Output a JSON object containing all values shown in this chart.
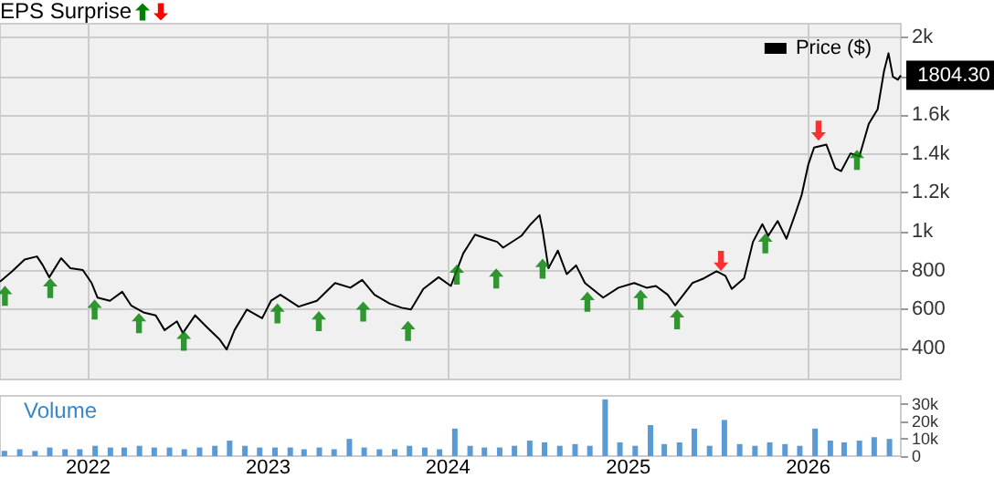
{
  "chart_data": [
    {
      "type": "line",
      "title": "EPS Surprise",
      "legend": "top right",
      "grid": true,
      "marker": "none",
      "tick_labels": "y",
      "xlim": [
        "2021-07-06",
        "2026-07-08"
      ],
      "xticks": [
        "2022",
        "2023",
        "2024",
        "2025",
        "2026"
      ],
      "ylim": [
        240,
        2070
      ],
      "yticks": [
        400,
        600,
        800,
        {
          "value": 1000,
          "label": "1k"
        },
        {
          "value": 1200,
          "label": "1.2k"
        },
        {
          "value": 1400,
          "label": "1.4k"
        },
        {
          "value": 1600,
          "label": "1.6k"
        },
        {
          "value": 1800,
          "label": null
        },
        {
          "value": 2000,
          "label": "2k"
        }
      ],
      "annotations": [
        {
          "text": "1804.30",
          "x": "2026-07-08",
          "y": 1804.3
        }
      ],
      "series": [
        {
          "name": "Price ($)",
          "type": "line",
          "color": "#000000",
          "x": [
            "2021-07-06",
            "2021-07-31",
            "2021-08-25",
            "2021-09-19",
            "2021-10-01",
            "2021-10-14",
            "2021-11-07",
            "2021-11-26",
            "2021-12-21",
            "2022-01-08",
            "2022-01-20",
            "2022-02-14",
            "2022-03-11",
            "2022-03-29",
            "2022-04-23",
            "2022-05-18",
            "2022-06-05",
            "2022-06-30",
            "2022-07-12",
            "2022-08-06",
            "2022-08-30",
            "2022-09-24",
            "2022-10-09",
            "2022-10-25",
            "2022-11-19",
            "2022-12-20",
            "2023-01-07",
            "2023-01-26",
            "2023-03-04",
            "2023-04-10",
            "2023-05-17",
            "2023-06-17",
            "2023-07-11",
            "2023-08-05",
            "2023-09-05",
            "2023-09-29",
            "2023-10-18",
            "2023-11-12",
            "2023-12-13",
            "2024-01-07",
            "2024-02-01",
            "2024-02-25",
            "2024-03-21",
            "2024-04-10",
            "2024-04-22",
            "2024-05-29",
            "2024-06-17",
            "2024-07-05",
            "2024-07-11",
            "2024-07-23",
            "2024-08-11",
            "2024-08-29",
            "2024-09-17",
            "2024-10-05",
            "2024-11-11",
            "2024-12-12",
            "2025-01-13",
            "2025-02-07",
            "2025-02-26",
            "2025-03-22",
            "2025-04-06",
            "2025-05-11",
            "2025-06-04",
            "2025-06-29",
            "2025-07-17",
            "2025-07-30",
            "2025-08-24",
            "2025-09-11",
            "2025-09-30",
            "2025-10-12",
            "2025-10-31",
            "2025-11-18",
            "2025-12-07",
            "2025-12-19",
            "2026-01-01",
            "2026-01-13",
            "2026-02-07",
            "2026-02-25",
            "2026-03-09",
            "2026-03-28",
            "2026-04-15",
            "2026-05-04",
            "2026-05-22",
            "2026-06-04",
            "2026-06-13",
            "2026-06-22",
            "2026-07-02",
            "2026-07-08"
          ],
          "values": [
            743,
            797,
            857,
            873,
            827,
            766,
            864,
            812,
            803,
            736,
            661,
            645,
            691,
            621,
            585,
            570,
            494,
            539,
            479,
            570,
            509,
            448,
            394,
            494,
            600,
            555,
            645,
            676,
            615,
            645,
            736,
            712,
            752,
            676,
            630,
            609,
            600,
            706,
            766,
            721,
            888,
            985,
            964,
            948,
            918,
            979,
            1039,
            1085,
            1009,
            812,
            903,
            782,
            827,
            736,
            661,
            712,
            736,
            712,
            721,
            676,
            621,
            736,
            761,
            797,
            773,
            706,
            761,
            948,
            1039,
            979,
            1055,
            964,
            1100,
            1191,
            1343,
            1433,
            1448,
            1327,
            1312,
            1403,
            1388,
            1555,
            1630,
            1827,
            1918,
            1797,
            1782,
            1804.3
          ]
        },
        {
          "type": "scatter",
          "color": "#008000",
          "x": [
            "2021-07-16",
            "2021-10-16",
            "2022-01-14",
            "2022-04-14",
            "2022-07-14",
            "2023-01-20",
            "2023-04-14",
            "2023-07-13",
            "2023-10-12",
            "2024-01-19",
            "2024-04-08",
            "2024-07-11",
            "2024-10-10",
            "2025-01-26",
            "2025-04-10",
            "2025-10-06",
            "2026-04-10"
          ],
          "values": [
            670,
            710,
            600,
            530,
            440,
            580,
            540,
            590,
            490,
            780,
            760,
            810,
            640,
            650,
            550,
            940,
            1370
          ]
        },
        {
          "type": "scatter",
          "color": "#ff0000",
          "x": [
            "2025-07-08",
            "2026-01-22"
          ],
          "values": [
            850,
            1520
          ]
        }
      ]
    },
    {
      "type": "bar",
      "title": "Volume",
      "grid": true,
      "color": "#5b9bd5",
      "xlim": [
        "2021-07-06",
        "2026-07-08"
      ],
      "xticks": [
        "2022",
        "2023",
        "2024",
        "2025",
        "2026"
      ],
      "ylim": [
        0,
        35000
      ],
      "yticks": [
        0,
        {
          "value": 10000,
          "label": "10k"
        },
        {
          "value": 20000,
          "label": "20k"
        },
        {
          "value": 30000,
          "label": "30k"
        }
      ],
      "x": [
        "2021-07-15",
        "2021-08-15",
        "2021-09-15",
        "2021-10-15",
        "2021-11-15",
        "2021-12-15",
        "2022-01-15",
        "2022-02-15",
        "2022-03-15",
        "2022-04-15",
        "2022-05-15",
        "2022-06-15",
        "2022-07-15",
        "2022-08-15",
        "2022-09-15",
        "2022-10-15",
        "2022-11-15",
        "2022-12-15",
        "2023-01-15",
        "2023-02-15",
        "2023-03-15",
        "2023-04-15",
        "2023-05-15",
        "2023-06-15",
        "2023-07-15",
        "2023-08-15",
        "2023-09-15",
        "2023-10-15",
        "2023-11-15",
        "2023-12-15",
        "2024-01-15",
        "2024-02-15",
        "2024-03-15",
        "2024-04-15",
        "2024-05-15",
        "2024-06-15",
        "2024-07-15",
        "2024-08-15",
        "2024-09-15",
        "2024-10-15",
        "2024-11-15",
        "2024-12-15",
        "2025-01-15",
        "2025-02-15",
        "2025-03-15",
        "2025-04-15",
        "2025-05-15",
        "2025-06-15",
        "2025-07-15",
        "2025-08-15",
        "2025-09-15",
        "2025-10-15",
        "2025-11-15",
        "2025-12-15",
        "2026-01-15",
        "2026-02-15",
        "2026-03-15",
        "2026-04-15",
        "2026-05-15",
        "2026-06-15"
      ],
      "values": [
        3000,
        4000,
        3000,
        5000,
        4000,
        4000,
        6000,
        5000,
        5000,
        6000,
        5000,
        5000,
        4000,
        5000,
        6000,
        9000,
        6000,
        5000,
        5000,
        5000,
        4000,
        5000,
        4000,
        10000,
        5000,
        4000,
        4000,
        6000,
        5000,
        4000,
        16000,
        6000,
        5000,
        5000,
        6000,
        9000,
        8000,
        6000,
        7000,
        6000,
        33000,
        8000,
        6000,
        18000,
        7000,
        8000,
        16000,
        6000,
        21000,
        7000,
        6000,
        8000,
        7000,
        6000,
        16000,
        9000,
        8000,
        9000,
        11000,
        10000
      ]
    }
  ]
}
